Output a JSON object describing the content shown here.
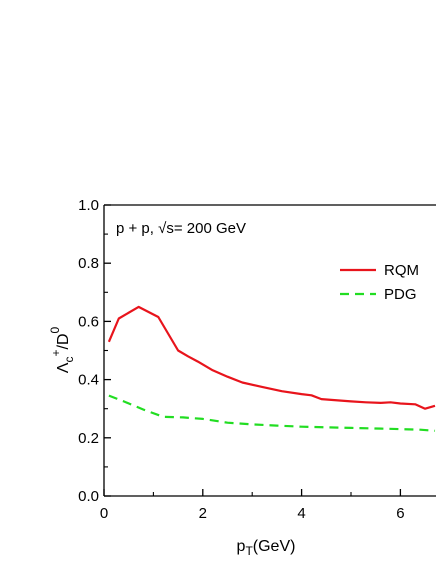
{
  "chart_data": {
    "type": "line",
    "annotation": "p + p, √s= 200 GeV",
    "xlabel_main": "p",
    "xlabel_sub": "T",
    "xlabel_rest": "(GeV)",
    "ylabel_main": "Λ",
    "ylabel_sub": "c",
    "ylabel_sup": "+",
    "ylabel_rest": "/D",
    "ylabel_sup2": "0",
    "xlim": [
      0,
      6.7
    ],
    "ylim": [
      0,
      1.0
    ],
    "xticks": [
      0,
      2,
      4,
      6
    ],
    "xtick_labels": [
      "0",
      "2",
      "4",
      "6"
    ],
    "yticks": [
      0,
      0.2,
      0.4,
      0.6,
      0.8,
      1.0
    ],
    "ytick_labels": [
      "0.0",
      "0.2",
      "0.4",
      "0.6",
      "0.8",
      "1.0"
    ],
    "legend_position": "upper-right",
    "series": [
      {
        "name": "RQM",
        "color": "#e8141c",
        "style": "solid",
        "x": [
          0.1,
          0.3,
          0.7,
          1.1,
          1.5,
          1.7,
          1.9,
          2.2,
          2.5,
          2.8,
          3.2,
          3.6,
          4.0,
          4.2,
          4.4,
          4.8,
          5.0,
          5.3,
          5.6,
          5.8,
          6.0,
          6.3,
          6.5,
          6.7
        ],
        "y": [
          0.53,
          0.61,
          0.65,
          0.615,
          0.5,
          0.48,
          0.462,
          0.432,
          0.41,
          0.39,
          0.375,
          0.36,
          0.35,
          0.346,
          0.333,
          0.328,
          0.325,
          0.322,
          0.32,
          0.322,
          0.318,
          0.315,
          0.3,
          0.31
        ]
      },
      {
        "name": "PDG",
        "color": "#22dd22",
        "style": "dashed",
        "x": [
          0.1,
          0.4,
          0.8,
          1.2,
          1.6,
          2.0,
          2.5,
          3.0,
          3.5,
          4.0,
          4.5,
          5.0,
          5.5,
          6.0,
          6.4,
          6.7
        ],
        "y": [
          0.345,
          0.325,
          0.297,
          0.272,
          0.27,
          0.265,
          0.252,
          0.246,
          0.242,
          0.238,
          0.236,
          0.234,
          0.232,
          0.23,
          0.228,
          0.224
        ]
      }
    ]
  }
}
